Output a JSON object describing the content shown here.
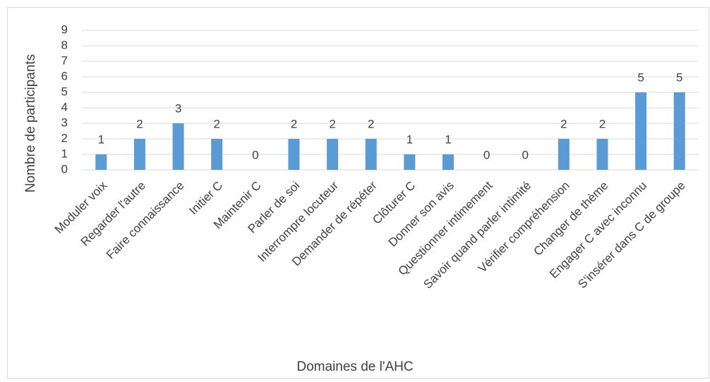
{
  "chart_data": {
    "type": "bar",
    "xlabel": "Domaines de l'AHC",
    "ylabel": "Nombre de participants",
    "categories": [
      "Moduler  voix",
      "Regarder l'autre",
      "Faire connaissance",
      "Initier C",
      "Maintenir C",
      "Parler de soi",
      "Interrompre locuteur",
      "Demander de répéter",
      "Clôturer C",
      "Donner son avis",
      "Questionner intimement",
      "Savoir quand parler intimité",
      "Vérifier compréhension",
      "Changer de thème",
      "Engager C avec inconnu",
      "S'insérer dans C de groupe"
    ],
    "values": [
      1,
      2,
      3,
      2,
      0,
      2,
      2,
      2,
      1,
      1,
      0,
      0,
      2,
      2,
      5,
      5
    ],
    "color": "#5b9bd5",
    "ylim": [
      0,
      9
    ],
    "yticks": [
      0,
      1,
      2,
      3,
      4,
      5,
      6,
      7,
      8,
      9
    ],
    "grid": true
  }
}
